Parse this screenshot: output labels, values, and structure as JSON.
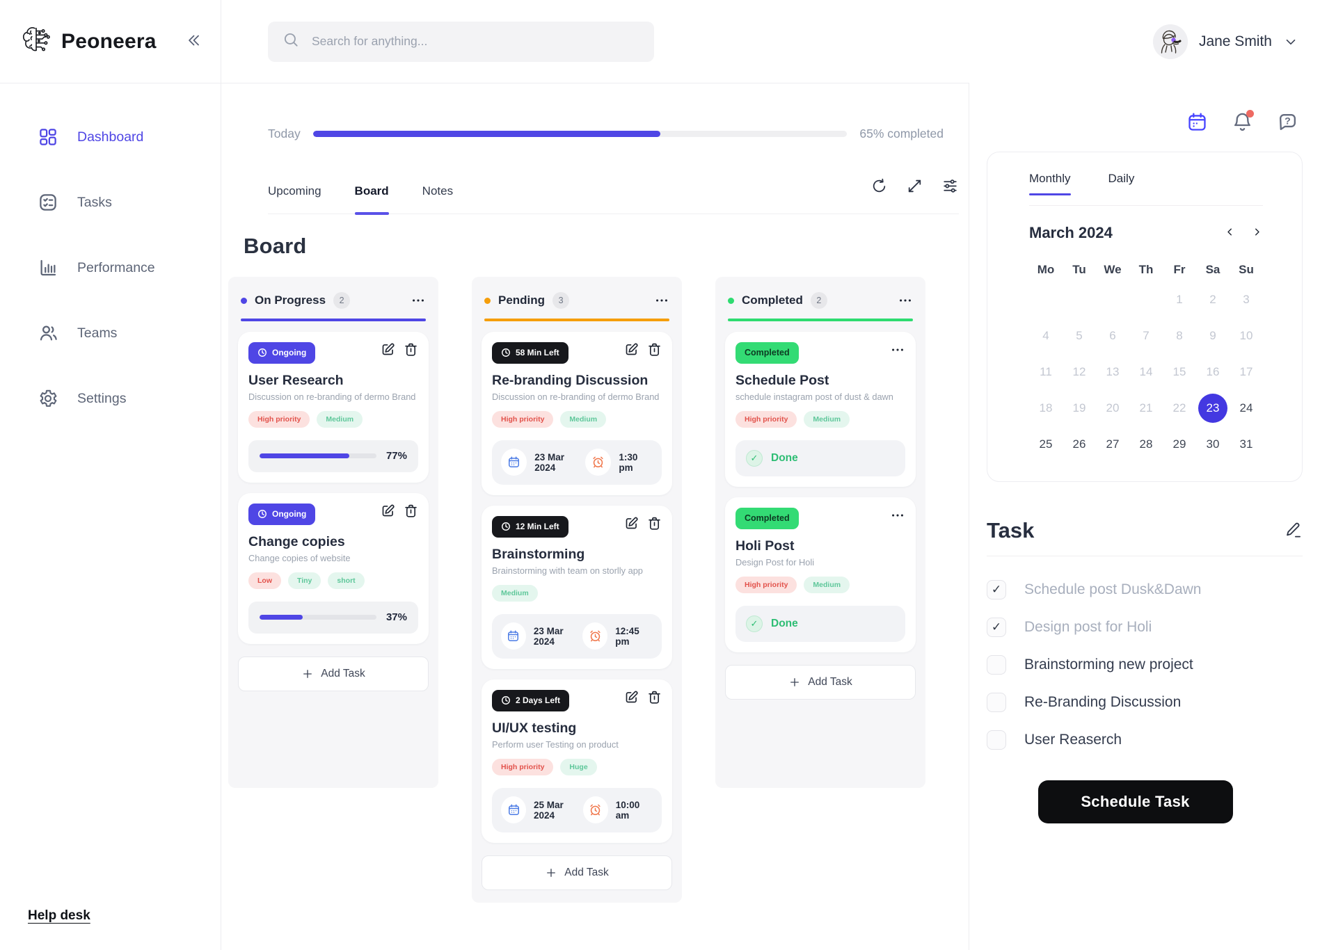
{
  "brand": {
    "name": "Peoneera"
  },
  "topbar": {
    "search_placeholder": "Search for anything...",
    "user_name": "Jane Smith"
  },
  "sidebar": {
    "items": [
      {
        "label": "Dashboard",
        "icon": "grid-icon",
        "active": true
      },
      {
        "label": "Tasks",
        "icon": "checklist-icon",
        "active": false
      },
      {
        "label": "Performance",
        "icon": "bar-chart-icon",
        "active": false
      },
      {
        "label": "Teams",
        "icon": "people-icon",
        "active": false
      },
      {
        "label": "Settings",
        "icon": "gear-icon",
        "active": false
      }
    ],
    "footer_link": "Help desk"
  },
  "overview": {
    "label": "Today",
    "percent": 65,
    "percent_label": "65% completed"
  },
  "view_tabs": [
    {
      "label": "Upcoming",
      "active": false
    },
    {
      "label": "Board",
      "active": true
    },
    {
      "label": "Notes",
      "active": false
    }
  ],
  "page_title": "Board",
  "board": {
    "add_task_label": "Add Task",
    "columns": [
      {
        "name": "On Progress",
        "count": "2",
        "accent": "#4f46e5",
        "show_add": true,
        "cards": [
          {
            "badge": {
              "label": "Ongoing",
              "style": "purple",
              "clock": true
            },
            "actions": "edit-delete",
            "title": "User Research",
            "desc": "Discussion on re-branding of dermo Brand",
            "tags": [
              {
                "label": "High priority",
                "tone": "red"
              },
              {
                "label": "Medium",
                "tone": "green"
              }
            ],
            "progress": {
              "percent": 77,
              "label": "77%"
            }
          },
          {
            "badge": {
              "label": "Ongoing",
              "style": "purple",
              "clock": true
            },
            "actions": "edit-delete",
            "title": "Change copies",
            "desc": "Change copies of website",
            "tags": [
              {
                "label": "Low",
                "tone": "red"
              },
              {
                "label": "Tiny",
                "tone": "green"
              },
              {
                "label": "short",
                "tone": "green"
              }
            ],
            "progress": {
              "percent": 37,
              "label": "37%"
            }
          }
        ]
      },
      {
        "name": "Pending",
        "count": "3",
        "accent": "#f59e0b",
        "show_add": true,
        "cards": [
          {
            "badge": {
              "label": "58 Min Left",
              "style": "black",
              "clock": true
            },
            "actions": "edit-delete",
            "title": "Re-branding Discussion",
            "desc": "Discussion on re-branding of dermo Brand",
            "tags": [
              {
                "label": "High priority",
                "tone": "red"
              },
              {
                "label": "Medium",
                "tone": "green"
              }
            ],
            "schedule": {
              "date": "23 Mar 2024",
              "time": "1:30 pm"
            }
          },
          {
            "badge": {
              "label": "12 Min Left",
              "style": "black",
              "clock": true
            },
            "actions": "edit-delete",
            "title": "Brainstorming",
            "desc": "Brainstorming with team on storlly app",
            "tags": [
              {
                "label": "Medium",
                "tone": "green"
              }
            ],
            "schedule": {
              "date": "23 Mar 2024",
              "time": "12:45 pm"
            }
          },
          {
            "badge": {
              "label": "2 Days Left",
              "style": "black",
              "clock": true
            },
            "actions": "edit-delete",
            "title": "UI/UX testing",
            "desc": "Perform user Testing on product",
            "tags": [
              {
                "label": "High priority",
                "tone": "red"
              },
              {
                "label": "Huge",
                "tone": "green"
              }
            ],
            "schedule": {
              "date": "25 Mar 2024",
              "time": "10:00 am"
            }
          }
        ]
      },
      {
        "name": "Completed",
        "count": "2",
        "accent": "#2edb70",
        "show_add": true,
        "cards": [
          {
            "badge": {
              "label": "Completed",
              "style": "green",
              "clock": false
            },
            "actions": "menu",
            "title": "Schedule Post",
            "desc": "schedule instagram post of dust & dawn",
            "tags": [
              {
                "label": "High priority",
                "tone": "red"
              },
              {
                "label": "Medium",
                "tone": "green"
              }
            ],
            "done_label": "Done"
          },
          {
            "badge": {
              "label": "Completed",
              "style": "green",
              "clock": false
            },
            "actions": "menu",
            "title": "Holi Post",
            "desc": "Design Post for Holi",
            "tags": [
              {
                "label": "High priority",
                "tone": "red"
              },
              {
                "label": "Medium",
                "tone": "green"
              }
            ],
            "done_label": "Done"
          }
        ]
      }
    ]
  },
  "panel": {
    "calendar": {
      "tabs": [
        {
          "label": "Monthly",
          "active": true
        },
        {
          "label": "Daily",
          "active": false
        }
      ],
      "month_label": "March 2024",
      "weekdays": [
        "Mo",
        "Tu",
        "We",
        "Th",
        "Fr",
        "Sa",
        "Su"
      ],
      "lead_blanks": 4,
      "num_days": 31,
      "muted_through": 22,
      "selected_day": 23
    },
    "tasks": {
      "title": "Task",
      "items": [
        {
          "label": "Schedule post Dusk&Dawn",
          "checked": true
        },
        {
          "label": "Design post for Holi",
          "checked": true
        },
        {
          "label": "Brainstorming new project",
          "checked": false
        },
        {
          "label": "Re-Branding Discussion",
          "checked": false
        },
        {
          "label": "User Reaserch",
          "checked": false
        }
      ],
      "button_label": "Schedule Task"
    }
  }
}
